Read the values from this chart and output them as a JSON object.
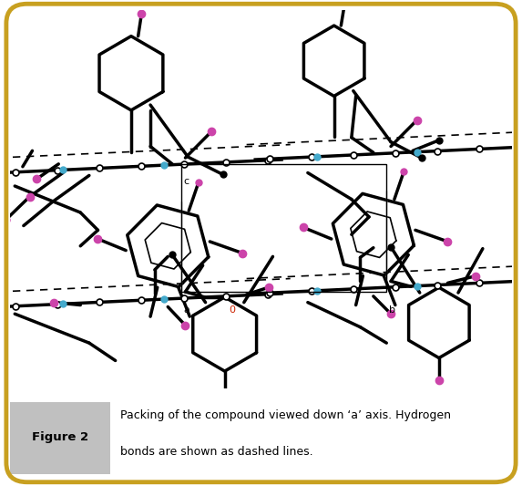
{
  "figure_label": "Figure 2",
  "caption_line1": "Packing of the compound viewed down ‘a’ axis. Hydrogen",
  "caption_line2": "bonds are shown as dashed lines.",
  "border_color": "#C8A020",
  "figure_bg": "#ffffff",
  "caption_label_bg": "#c0c0c0",
  "black": "#000000",
  "magenta": "#CC44AA",
  "cyan": "#44AACC",
  "lw_thick": 2.5,
  "lw_med": 1.8,
  "lw_thin": 1.0,
  "ms_large": 7,
  "ms_med": 5,
  "ms_small": 4
}
